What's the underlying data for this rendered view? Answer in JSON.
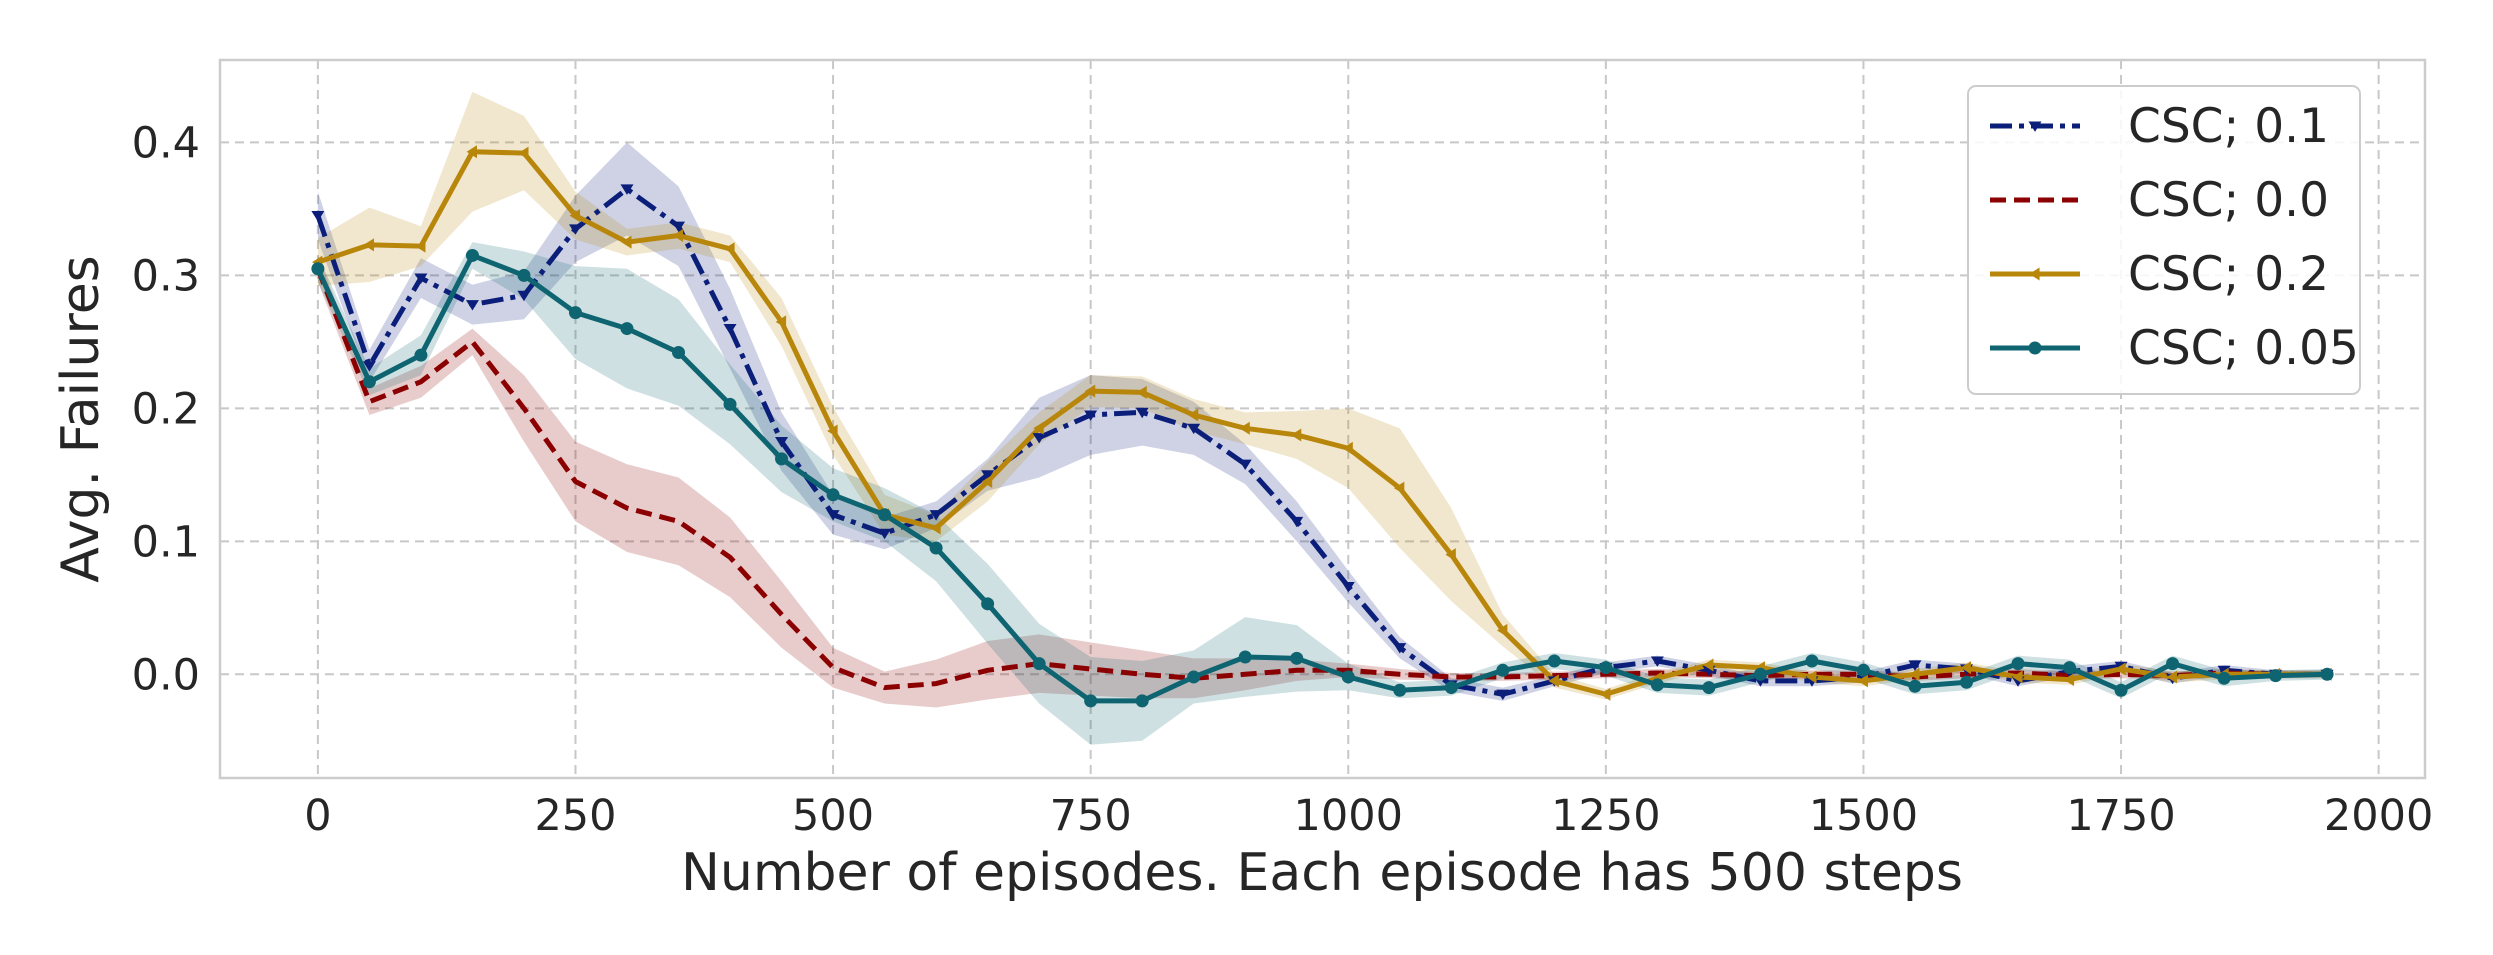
{
  "chart_data": {
    "type": "line",
    "title": "",
    "xlabel": "Number of episodes. Each episode has 500 steps",
    "ylabel": "Avg. Failures",
    "xlim": [
      -95,
      2045
    ],
    "ylim": [
      -0.078,
      0.462
    ],
    "xticks": [
      0,
      250,
      500,
      750,
      1000,
      1250,
      1500,
      1750,
      2000
    ],
    "xtick_labels": [
      "0",
      "250",
      "500",
      "750",
      "1000",
      "1250",
      "1500",
      "1750",
      "2000"
    ],
    "yticks": [
      0.0,
      0.1,
      0.2,
      0.3,
      0.4
    ],
    "ytick_labels": [
      "0.0",
      "0.1",
      "0.2",
      "0.3",
      "0.4"
    ],
    "grid": true,
    "legend_position": "top-right",
    "series": [
      {
        "name": "CSC; 0.1",
        "color": "#0b1f7a",
        "dash": "dashdot",
        "marker": "triangle-down",
        "x": [
          0,
          50,
          100,
          150,
          200,
          250,
          300,
          350,
          400,
          450,
          500,
          550,
          600,
          650,
          700,
          750,
          800,
          850,
          900,
          950,
          1000,
          1050,
          1100,
          1150,
          1200,
          1250,
          1300,
          1350,
          1400,
          1450,
          1500,
          1550,
          1600,
          1650,
          1700,
          1750,
          1800,
          1850,
          1900,
          1950
        ],
        "y": [
          0.345,
          0.232,
          0.298,
          0.278,
          0.285,
          0.335,
          0.365,
          0.337,
          0.26,
          0.175,
          0.12,
          0.106,
          0.12,
          0.15,
          0.178,
          0.195,
          0.197,
          0.185,
          0.158,
          0.115,
          0.066,
          0.02,
          -0.008,
          -0.015,
          -0.005,
          0.005,
          0.01,
          0.003,
          -0.005,
          -0.005,
          -0.002,
          0.007,
          0.004,
          -0.005,
          0.002,
          0.006,
          -0.003,
          0.003,
          0.0,
          0.0
        ],
        "band": [
          0.018,
          0.012,
          0.015,
          0.015,
          0.018,
          0.025,
          0.035,
          0.03,
          0.03,
          0.022,
          0.015,
          0.012,
          0.01,
          0.012,
          0.03,
          0.03,
          0.025,
          0.02,
          0.015,
          0.015,
          0.012,
          0.008,
          0.005,
          0.005,
          0.004,
          0.004,
          0.004,
          0.004,
          0.004,
          0.004,
          0.004,
          0.004,
          0.004,
          0.004,
          0.004,
          0.004,
          0.004,
          0.004,
          0.003,
          0.003
        ]
      },
      {
        "name": "CSC; 0.0",
        "color": "#8b0000",
        "dash": "dashed",
        "marker": "none",
        "x": [
          0,
          50,
          100,
          150,
          200,
          250,
          300,
          350,
          400,
          450,
          500,
          550,
          600,
          650,
          700,
          750,
          800,
          850,
          900,
          950,
          1000,
          1050,
          1100,
          1150,
          1200,
          1250,
          1300,
          1350,
          1400,
          1450,
          1500,
          1550,
          1600,
          1650,
          1700,
          1750,
          1800,
          1850,
          1900,
          1950
        ],
        "y": [
          0.305,
          0.205,
          0.22,
          0.25,
          0.2,
          0.145,
          0.125,
          0.115,
          0.088,
          0.045,
          0.005,
          -0.01,
          -0.007,
          0.003,
          0.008,
          0.004,
          0.0,
          -0.003,
          0.0,
          0.003,
          0.003,
          0.0,
          -0.002,
          -0.002,
          -0.001,
          0.0,
          0.001,
          0.0,
          -0.001,
          0.0,
          0.0,
          -0.002,
          0.0,
          0.001,
          -0.001,
          0.0,
          -0.001,
          0.001,
          0.0,
          0.0
        ],
        "band": [
          0.01,
          0.01,
          0.012,
          0.01,
          0.025,
          0.03,
          0.033,
          0.033,
          0.03,
          0.025,
          0.015,
          0.012,
          0.018,
          0.022,
          0.022,
          0.02,
          0.018,
          0.015,
          0.012,
          0.008,
          0.005,
          0.004,
          0.003,
          0.003,
          0.003,
          0.003,
          0.003,
          0.003,
          0.003,
          0.003,
          0.003,
          0.003,
          0.003,
          0.003,
          0.003,
          0.003,
          0.003,
          0.003,
          0.002,
          0.002
        ]
      },
      {
        "name": "CSC; 0.2",
        "color": "#b8860b",
        "dash": "solid",
        "marker": "triangle-left",
        "x": [
          0,
          50,
          100,
          150,
          200,
          250,
          300,
          350,
          400,
          450,
          500,
          550,
          600,
          650,
          700,
          750,
          800,
          850,
          900,
          950,
          1000,
          1050,
          1100,
          1150,
          1200,
          1250,
          1300,
          1350,
          1400,
          1450,
          1500,
          1550,
          1600,
          1650,
          1700,
          1750,
          1800,
          1850,
          1900,
          1950
        ],
        "y": [
          0.31,
          0.323,
          0.322,
          0.393,
          0.392,
          0.345,
          0.325,
          0.33,
          0.32,
          0.265,
          0.183,
          0.12,
          0.11,
          0.145,
          0.185,
          0.213,
          0.212,
          0.195,
          0.185,
          0.18,
          0.17,
          0.14,
          0.09,
          0.033,
          -0.005,
          -0.015,
          -0.003,
          0.007,
          0.005,
          -0.002,
          -0.005,
          0.0,
          0.005,
          -0.002,
          -0.004,
          0.004,
          -0.002,
          0.0,
          0.0,
          0.0
        ],
        "band": [
          0.018,
          0.028,
          0.015,
          0.045,
          0.028,
          0.018,
          0.01,
          0.01,
          0.01,
          0.018,
          0.018,
          0.015,
          0.01,
          0.015,
          0.012,
          0.012,
          0.012,
          0.012,
          0.012,
          0.018,
          0.03,
          0.045,
          0.035,
          0.012,
          0.005,
          0.004,
          0.004,
          0.004,
          0.004,
          0.004,
          0.004,
          0.004,
          0.004,
          0.004,
          0.004,
          0.004,
          0.004,
          0.004,
          0.003,
          0.003
        ]
      },
      {
        "name": "CSC; 0.05",
        "color": "#0e6470",
        "dash": "solid",
        "marker": "circle",
        "x": [
          0,
          50,
          100,
          150,
          200,
          250,
          300,
          350,
          400,
          450,
          500,
          550,
          600,
          650,
          700,
          750,
          800,
          850,
          900,
          950,
          1000,
          1050,
          1100,
          1150,
          1200,
          1250,
          1300,
          1350,
          1400,
          1450,
          1500,
          1550,
          1600,
          1650,
          1700,
          1750,
          1800,
          1850,
          1900,
          1950
        ],
        "y": [
          0.305,
          0.22,
          0.24,
          0.315,
          0.3,
          0.272,
          0.26,
          0.242,
          0.203,
          0.162,
          0.135,
          0.12,
          0.095,
          0.053,
          0.008,
          -0.02,
          -0.02,
          -0.002,
          0.013,
          0.012,
          -0.002,
          -0.012,
          -0.01,
          0.003,
          0.01,
          0.005,
          -0.008,
          -0.01,
          0.0,
          0.01,
          0.003,
          -0.009,
          -0.006,
          0.008,
          0.005,
          -0.012,
          0.008,
          -0.003,
          -0.001,
          0.0
        ],
        "band": [
          0.01,
          0.01,
          0.015,
          0.01,
          0.018,
          0.035,
          0.045,
          0.04,
          0.03,
          0.025,
          0.02,
          0.02,
          0.025,
          0.03,
          0.03,
          0.033,
          0.03,
          0.02,
          0.03,
          0.025,
          0.01,
          0.006,
          0.006,
          0.006,
          0.006,
          0.006,
          0.006,
          0.006,
          0.006,
          0.006,
          0.006,
          0.006,
          0.006,
          0.006,
          0.006,
          0.006,
          0.006,
          0.006,
          0.004,
          0.004
        ]
      }
    ]
  }
}
